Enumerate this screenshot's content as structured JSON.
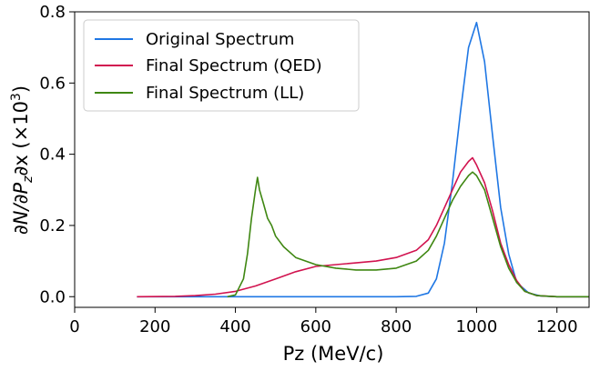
{
  "chart_data": {
    "type": "line",
    "title": "",
    "xlabel": "Pz (MeV/c)",
    "ylabel_main": "∂N/∂P",
    "ylabel_sub": "z",
    "ylabel_tail": "∂x (×10",
    "ylabel_sup": "3",
    "ylabel_close": ")",
    "xlim": [
      0,
      1280
    ],
    "ylim": [
      -0.03,
      0.8
    ],
    "xticks": [
      0,
      200,
      400,
      600,
      800,
      1000,
      1200
    ],
    "xtick_labels": [
      "0",
      "200",
      "400",
      "600",
      "800",
      "1000",
      "1200"
    ],
    "yticks": [
      0.0,
      0.2,
      0.4,
      0.6,
      0.8
    ],
    "ytick_labels": [
      "0.0",
      "0.2",
      "0.4",
      "0.6",
      "0.8"
    ],
    "grid": false,
    "legend_position": "top-left",
    "series": [
      {
        "name": "Original Spectrum",
        "color": "#1f77e4",
        "x": [
          155,
          800,
          850,
          880,
          900,
          920,
          940,
          960,
          980,
          1000,
          1020,
          1040,
          1060,
          1080,
          1100,
          1130,
          1160,
          1200,
          1280
        ],
        "y": [
          0.0,
          0.0,
          0.001,
          0.01,
          0.05,
          0.15,
          0.32,
          0.52,
          0.7,
          0.77,
          0.66,
          0.45,
          0.25,
          0.12,
          0.04,
          0.01,
          0.002,
          0.0,
          0.0
        ]
      },
      {
        "name": "Final Spectrum (QED)",
        "color": "#d1134f",
        "x": [
          155,
          250,
          300,
          350,
          400,
          450,
          500,
          550,
          600,
          650,
          700,
          750,
          800,
          850,
          880,
          900,
          920,
          940,
          960,
          980,
          990,
          1000,
          1020,
          1040,
          1060,
          1080,
          1100,
          1120,
          1150,
          1200,
          1280
        ],
        "y": [
          0.0,
          0.001,
          0.003,
          0.007,
          0.015,
          0.03,
          0.05,
          0.07,
          0.085,
          0.09,
          0.095,
          0.1,
          0.11,
          0.13,
          0.16,
          0.2,
          0.25,
          0.3,
          0.35,
          0.38,
          0.39,
          0.37,
          0.32,
          0.24,
          0.15,
          0.09,
          0.045,
          0.015,
          0.003,
          0.0,
          0.0
        ]
      },
      {
        "name": "Final Spectrum (LL)",
        "color": "#3f8712",
        "x": [
          380,
          400,
          420,
          430,
          440,
          450,
          455,
          460,
          470,
          480,
          490,
          500,
          520,
          550,
          600,
          650,
          700,
          750,
          800,
          850,
          880,
          900,
          920,
          940,
          960,
          980,
          990,
          1000,
          1020,
          1040,
          1060,
          1080,
          1100,
          1120,
          1150,
          1200,
          1280
        ],
        "y": [
          0.0,
          0.005,
          0.05,
          0.12,
          0.22,
          0.3,
          0.335,
          0.3,
          0.26,
          0.22,
          0.2,
          0.17,
          0.14,
          0.11,
          0.09,
          0.08,
          0.075,
          0.075,
          0.08,
          0.1,
          0.13,
          0.17,
          0.22,
          0.27,
          0.31,
          0.34,
          0.35,
          0.34,
          0.3,
          0.22,
          0.14,
          0.08,
          0.04,
          0.015,
          0.003,
          0.0,
          0.0
        ]
      }
    ]
  }
}
